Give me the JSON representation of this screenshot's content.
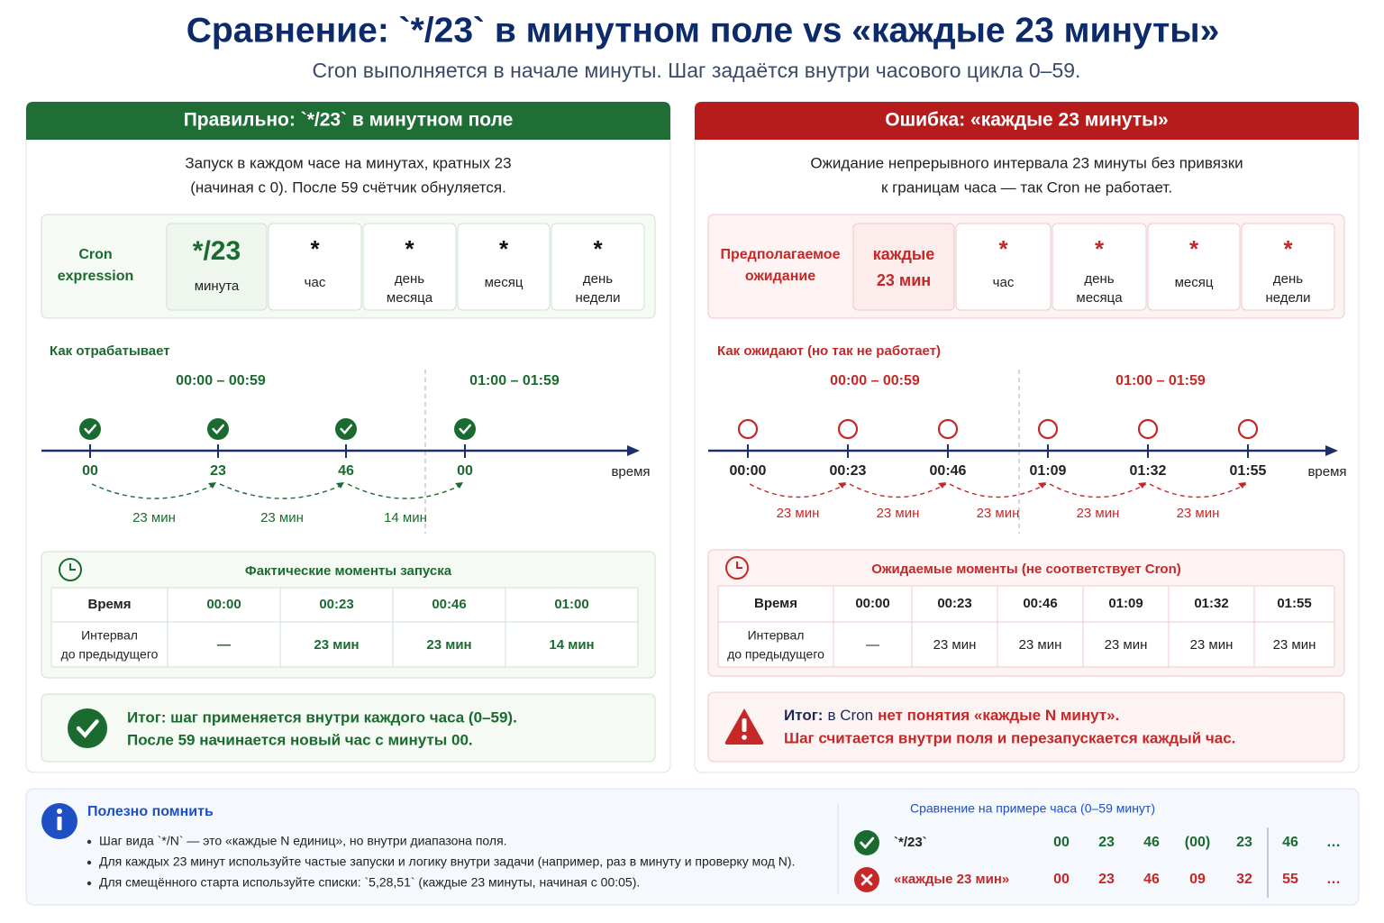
{
  "header": {
    "title": "Сравнение: `*/23` в минутном поле vs «каждые 23 минуты»",
    "subtitle": "Cron выполняется в начале минуты. Шаг задаётся внутри часового цикла 0–59."
  },
  "correct": {
    "title": "Правильно: `*/23` в минутном поле",
    "description": [
      "Запуск в каждом часе на минутах, кратных 23",
      "(начиная с 0). После 59 счётчик обнуляется."
    ],
    "expression": {
      "label": [
        "Cron",
        "expression"
      ],
      "fields": [
        {
          "value": "*/23",
          "name": [
            "минута"
          ]
        },
        {
          "value": "*",
          "name": [
            "час"
          ]
        },
        {
          "value": "*",
          "name": [
            "день",
            "месяца"
          ]
        },
        {
          "value": "*",
          "name": [
            "месяц"
          ]
        },
        {
          "value": "*",
          "name": [
            "день",
            "недели"
          ]
        }
      ]
    },
    "timeline": {
      "heading": "Как отрабатывает",
      "ranges": [
        "00:00 – 00:59",
        "01:00 – 01:59"
      ],
      "points": [
        "00",
        "23",
        "46",
        "00"
      ],
      "axis_label": "время",
      "intervals": [
        "23 мин",
        "23 мин",
        "14 мин"
      ]
    },
    "table": {
      "title": "Фактические моменты запуска",
      "header": [
        "Время",
        "00:00",
        "00:23",
        "00:46",
        "01:00"
      ],
      "row_label": [
        "Интервал",
        "до предыдущего"
      ],
      "row": [
        "—",
        "23 мин",
        "23 мин",
        "14 мин"
      ]
    },
    "summary": [
      "Итог: шаг применяется внутри каждого часа (0–59).",
      "После 59 начинается новый час с минуты 00."
    ]
  },
  "wrong": {
    "title": "Ошибка: «каждые 23 минуты»",
    "description": [
      "Ожидание непрерывного интервала 23 минуты без привязки",
      "к границам часа — так Cron не работает."
    ],
    "expression": {
      "label": [
        "Предполагаемое",
        "ожидание"
      ],
      "fields": [
        {
          "value": [
            "каждые",
            "23 мин"
          ]
        },
        {
          "value": "*",
          "name": [
            "час"
          ]
        },
        {
          "value": "*",
          "name": [
            "день",
            "месяца"
          ]
        },
        {
          "value": "*",
          "name": [
            "месяц"
          ]
        },
        {
          "value": "*",
          "name": [
            "день",
            "недели"
          ]
        }
      ]
    },
    "timeline": {
      "heading": "Как ожидают (но так не работает)",
      "ranges": [
        "00:00 – 00:59",
        "01:00 – 01:59"
      ],
      "points": [
        "00:00",
        "00:23",
        "00:46",
        "01:09",
        "01:32",
        "01:55"
      ],
      "axis_label": "время",
      "intervals": [
        "23 мин",
        "23 мин",
        "23 мин",
        "23 мин",
        "23 мин"
      ]
    },
    "table": {
      "title": "Ожидаемые моменты (не соответствует Cron)",
      "header": [
        "Время",
        "00:00",
        "00:23",
        "00:46",
        "01:09",
        "01:32",
        "01:55"
      ],
      "row_label": [
        "Интервал",
        "до предыдущего"
      ],
      "row": [
        "—",
        "23 мин",
        "23 мин",
        "23 мин",
        "23 мин",
        "23 мин"
      ]
    },
    "summary": [
      [
        "Итог:",
        "в Cron",
        "нет понятия «каждые N минут»."
      ],
      "Шаг считается внутри поля и перезапускается каждый час."
    ]
  },
  "notes": {
    "title": "Полезно помнить",
    "items": [
      "Шаг вида `*/N` — это «каждые N единиц», но внутри диапазона поля.",
      "Для каждых 23 минут используйте частые запуски и логику внутри задачи (например, раз в минуту и проверку мод N).",
      "Для смещённого старта используйте списки: `5,28,51` (каждые 23 минуты, начиная с 00:05)."
    ]
  },
  "comparison": {
    "title": "Сравнение на примере часа (0–59 минут)",
    "rows": [
      {
        "label": "`*/23`",
        "values": [
          "00",
          "23",
          "46",
          "(00)",
          "23",
          "46",
          "…"
        ]
      },
      {
        "label": "«каждые 23 мин»",
        "values": [
          "00",
          "23",
          "46",
          "09",
          "32",
          "55",
          "…"
        ]
      }
    ]
  }
}
